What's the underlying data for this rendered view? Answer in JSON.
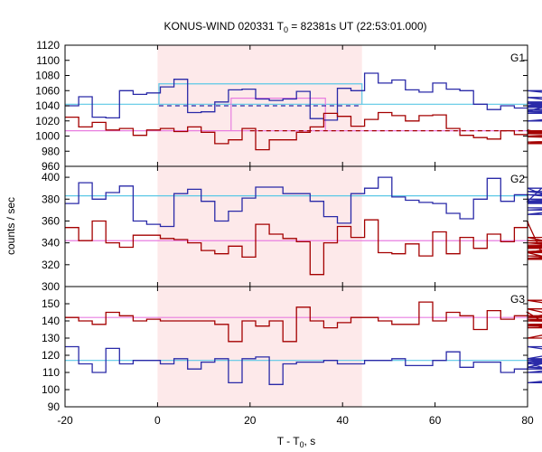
{
  "chart_data": {
    "type": "line",
    "title": "KONUS-WIND 020331 T",
    "title_sub": "0",
    "title_rest": " = 82381s UT (22:53:01.000)",
    "xlabel_main": "T - T",
    "xlabel_sub": "0",
    "xlabel_rest": ", s",
    "ylabel": "counts / sec",
    "xlim": [
      -20,
      80
    ],
    "xticks": [
      "-20",
      "0",
      "20",
      "40",
      "60",
      "80"
    ],
    "shaded_interval": [
      0,
      44.2
    ],
    "colors": {
      "red": "#a40000",
      "blue": "#2a2aa8",
      "cyan": "#5bc8e6",
      "pink": "#e87ee0",
      "shade": "#fde9ea"
    },
    "panels": [
      {
        "label": "G1",
        "ylim": [
          960,
          1120
        ],
        "yticks": [
          "960",
          "980",
          "1000",
          "1020",
          "1040",
          "1060",
          "1080",
          "1100",
          "1120"
        ],
        "bin_start": -20,
        "bin_width": 2.944,
        "red": [
          1025,
          1012,
          1018,
          1008,
          1010,
          1001,
          1008,
          1010,
          1006,
          1012,
          1005,
          990,
          995,
          1010,
          982,
          995,
          995,
          1005,
          1012,
          1030,
          1026,
          1013,
          1022,
          1031,
          1027,
          1020,
          1027,
          1028,
          1010,
          1001,
          998,
          996,
          1007,
          1002,
          1008,
          1004,
          1005,
          1004,
          1004,
          1005,
          1000,
          1006,
          1006,
          1000,
          990,
          1007,
          1006,
          1006,
          999,
          992,
          1003,
          1007,
          999,
          1006
        ],
        "blue": [
          1040,
          1052,
          1025,
          1024,
          1060,
          1055,
          1057,
          1065,
          1075,
          1031,
          1032,
          1045,
          1061,
          1062,
          1049,
          1047,
          1049,
          1059,
          1023,
          1021,
          1063,
          1060,
          1083,
          1070,
          1074,
          1061,
          1058,
          1070,
          1062,
          1060,
          1042,
          1035,
          1040,
          1037,
          1040,
          1040,
          1043,
          1033,
          1051,
          1040,
          1040,
          1060,
          1045,
          1040,
          1020,
          1035,
          1032,
          1030,
          1030,
          1038,
          1044,
          1039,
          1030,
          1040
        ],
        "cyan_line": 1042,
        "pink_line": 1007,
        "cyan_box": {
          "x": [
            0.3,
            44.2
          ],
          "y": 1069
        },
        "pink_box": {
          "x": [
            15.9,
            36.3
          ],
          "y": 1050
        },
        "blue_dash": {
          "x": [
            0.3,
            44.2
          ],
          "y": 1040
        },
        "red_dash": {
          "x": [
            20,
            80
          ],
          "y": 1007
        }
      },
      {
        "label": "G2",
        "ylim": [
          300,
          410
        ],
        "yticks": [
          "300",
          "320",
          "340",
          "360",
          "380",
          "400"
        ],
        "bin_start": -20,
        "bin_width": 2.944,
        "red": [
          354,
          342,
          360,
          340,
          336,
          347,
          347,
          344,
          343,
          340,
          333,
          330,
          337,
          327,
          357,
          348,
          344,
          341,
          311,
          340,
          355,
          345,
          361,
          331,
          330,
          339,
          328,
          350,
          330,
          345,
          335,
          348,
          341,
          354,
          359,
          331,
          325,
          331,
          340,
          335,
          345,
          345,
          325,
          338,
          337,
          336,
          332,
          326,
          337,
          328,
          325,
          342,
          332,
          345
        ],
        "blue": [
          376,
          395,
          380,
          386,
          392,
          360,
          357,
          355,
          385,
          389,
          378,
          360,
          369,
          381,
          391,
          391,
          385,
          385,
          378,
          364,
          358,
          385,
          390,
          400,
          382,
          379,
          377,
          376,
          367,
          362,
          380,
          399,
          378,
          384,
          378,
          390,
          380,
          378,
          378,
          384,
          378,
          366,
          378,
          376,
          387,
          372,
          370,
          377,
          384,
          378,
          378,
          378,
          380,
          370
        ],
        "cyan_line": 383,
        "pink_line": 342
      },
      {
        "label": "G3",
        "ylim": [
          90,
          160
        ],
        "yticks": [
          "90",
          "100",
          "110",
          "120",
          "130",
          "140",
          "150"
        ],
        "bin_start": -20,
        "bin_width": 2.944,
        "red": [
          142,
          140,
          138,
          145,
          143,
          140,
          141,
          140,
          140,
          140,
          140,
          138,
          128,
          140,
          137,
          140,
          128,
          148,
          140,
          136,
          139,
          142,
          142,
          140,
          138,
          138,
          151,
          140,
          145,
          143,
          135,
          146,
          141,
          143,
          145,
          140,
          140,
          142,
          147,
          138,
          130,
          141,
          137,
          143,
          143,
          140,
          152,
          136,
          138,
          140,
          138,
          140,
          140,
          141
        ],
        "blue": [
          125,
          115,
          110,
          124,
          115,
          117,
          117,
          115,
          118,
          112,
          116,
          118,
          104,
          118,
          119,
          103,
          115,
          116,
          116,
          117,
          115,
          115,
          117,
          117,
          118,
          114,
          114,
          117,
          122,
          113,
          116,
          116,
          110,
          112,
          116,
          113,
          117,
          116,
          118,
          125,
          118,
          115,
          118,
          110,
          118,
          116,
          118,
          115,
          116,
          112,
          118,
          104,
          118,
          113
        ],
        "cyan_line": 117,
        "pink_line": 142
      }
    ]
  }
}
